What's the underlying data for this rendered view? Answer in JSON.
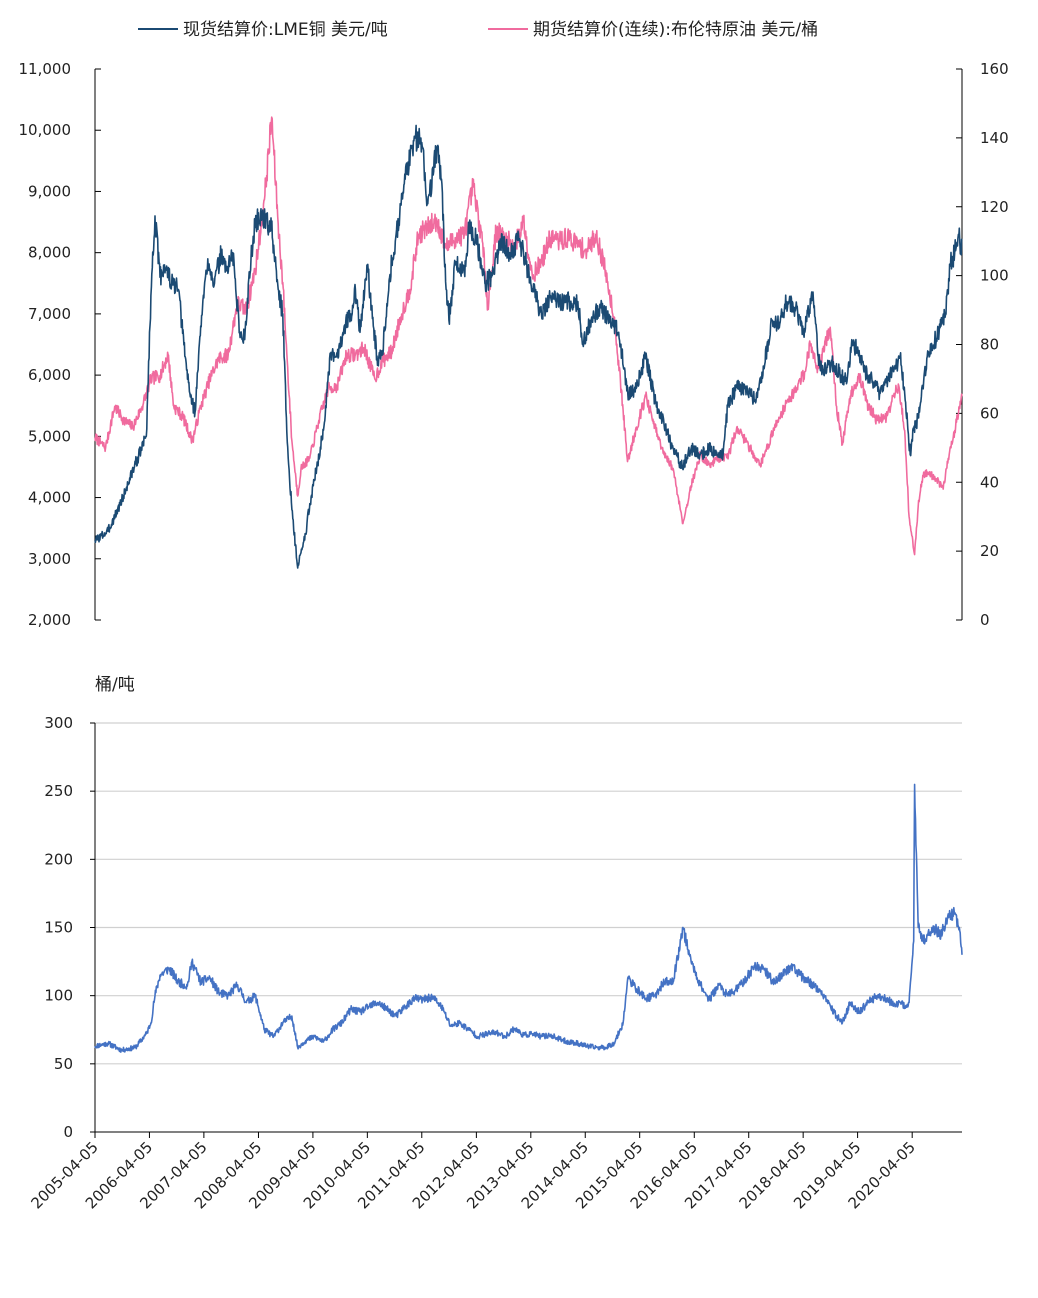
{
  "colors": {
    "copper": "#1B4A73",
    "brent": "#F06B9E",
    "ratio": "#4472C4",
    "axis": "#000000",
    "grid": "#D0D0D0"
  },
  "chart_data": [
    {
      "type": "line",
      "legend_position": "top",
      "legend": [
        "现货结算价:LME铜 美元/吨",
        "期货结算价(连续):布伦特原油 美元/桶"
      ],
      "left_ylim": [
        2000,
        11000
      ],
      "right_ylim": [
        0,
        160
      ],
      "left_ticks": [
        "2,000",
        "3,000",
        "4,000",
        "5,000",
        "6,000",
        "7,000",
        "8,000",
        "9,000",
        "10,000",
        "11,000"
      ],
      "right_ticks": [
        "0",
        "20",
        "40",
        "60",
        "80",
        "100",
        "120",
        "140",
        "160"
      ],
      "grid": false,
      "x_range": [
        "2005-04-05",
        "2021-03-05"
      ],
      "series": [
        {
          "name": "现货结算价:LME铜 美元/吨",
          "axis": "left",
          "x": [
            "2005-04-05",
            "2005-07-01",
            "2005-10-01",
            "2006-01-01",
            "2006-03-15",
            "2006-04-15",
            "2006-05-12",
            "2006-06-15",
            "2006-07-15",
            "2006-09-01",
            "2006-10-15",
            "2006-12-01",
            "2007-01-01",
            "2007-02-05",
            "2007-03-15",
            "2007-05-01",
            "2007-06-15",
            "2007-08-01",
            "2007-09-01",
            "2007-10-15",
            "2007-12-01",
            "2008-01-01",
            "2008-02-15",
            "2008-03-15",
            "2008-05-01",
            "2008-07-01",
            "2008-08-15",
            "2008-09-15",
            "2008-10-15",
            "2008-11-15",
            "2008-12-24",
            "2009-01-15",
            "2009-02-15",
            "2009-03-15",
            "2009-05-01",
            "2009-06-15",
            "2009-08-01",
            "2009-09-15",
            "2009-11-01",
            "2009-12-15",
            "2010-01-15",
            "2010-02-15",
            "2010-04-05",
            "2010-05-15",
            "2010-06-15",
            "2010-07-15",
            "2010-09-01",
            "2010-10-15",
            "2010-12-15",
            "2011-02-14",
            "2011-04-05",
            "2011-05-15",
            "2011-07-15",
            "2011-08-15",
            "2011-09-15",
            "2011-10-04",
            "2011-11-15",
            "2012-01-15",
            "2012-02-15",
            "2012-04-05",
            "2012-06-01",
            "2012-07-15",
            "2012-09-15",
            "2012-11-15",
            "2013-01-15",
            "2013-02-15",
            "2013-04-05",
            "2013-06-15",
            "2013-08-15",
            "2013-10-15",
            "2013-12-15",
            "2014-02-15",
            "2014-03-20",
            "2014-05-15",
            "2014-07-15",
            "2014-09-15",
            "2014-11-15",
            "2015-01-15",
            "2015-03-15",
            "2015-05-15",
            "2015-07-15",
            "2015-09-15",
            "2015-11-15",
            "2016-01-15",
            "2016-03-15",
            "2016-05-15",
            "2016-07-15",
            "2016-09-15",
            "2016-10-15",
            "2016-11-15",
            "2017-01-15",
            "2017-03-15",
            "2017-05-15",
            "2017-07-15",
            "2017-09-05",
            "2017-10-15",
            "2017-12-15",
            "2018-02-15",
            "2018-04-05",
            "2018-06-07",
            "2018-07-15",
            "2018-08-15",
            "2018-10-15",
            "2018-12-15",
            "2019-01-15",
            "2019-02-28",
            "2019-04-15",
            "2019-05-15",
            "2019-07-15",
            "2019-09-03",
            "2019-10-15",
            "2019-12-15",
            "2020-01-15",
            "2020-02-15",
            "2020-03-23",
            "2020-04-15",
            "2020-05-15",
            "2020-06-15",
            "2020-07-15",
            "2020-08-15",
            "2020-09-15",
            "2020-10-15",
            "2020-11-15",
            "2020-12-15",
            "2021-01-15",
            "2021-02-15",
            "2021-02-25",
            "2021-03-05"
          ],
          "y": [
            3300,
            3450,
            3950,
            4550,
            5000,
            7300,
            8600,
            7600,
            7800,
            7500,
            7400,
            6300,
            5700,
            5400,
            6800,
            7900,
            7500,
            8000,
            7700,
            8000,
            6700,
            6600,
            7900,
            8500,
            8600,
            8400,
            7400,
            7000,
            4900,
            3800,
            2850,
            3100,
            3400,
            3900,
            4500,
            5100,
            6300,
            6300,
            6800,
            7000,
            7400,
            6700,
            7800,
            6800,
            6200,
            6400,
            7600,
            8300,
            9200,
            9900,
            9800,
            8800,
            9700,
            9200,
            7400,
            6900,
            7800,
            7700,
            8400,
            8200,
            7500,
            7600,
            8200,
            8000,
            8200,
            8000,
            7500,
            7000,
            7300,
            7200,
            7200,
            7200,
            6500,
            6900,
            7100,
            6900,
            6700,
            5700,
            5800,
            6300,
            5600,
            5200,
            4800,
            4500,
            4800,
            4700,
            4800,
            4700,
            4700,
            5500,
            5800,
            5800,
            5600,
            6100,
            6900,
            6800,
            7200,
            7100,
            6700,
            7300,
            6300,
            6100,
            6200,
            6000,
            5900,
            6500,
            6400,
            6100,
            5900,
            5700,
            5900,
            6100,
            6300,
            5700,
            4700,
            5100,
            5300,
            5800,
            6300,
            6500,
            6600,
            6800,
            7000,
            7800,
            8000,
            8400,
            8000,
            8200
          ]
        },
        {
          "name": "期货结算价(连续):布伦特原油 美元/桶",
          "axis": "right",
          "x": [
            "2005-04-05",
            "2005-06-15",
            "2005-08-15",
            "2005-10-15",
            "2005-12-15",
            "2006-02-15",
            "2006-04-15",
            "2006-06-15",
            "2006-08-08",
            "2006-09-15",
            "2006-11-15",
            "2007-01-18",
            "2007-03-15",
            "2007-05-15",
            "2007-07-15",
            "2007-09-15",
            "2007-11-15",
            "2008-01-15",
            "2008-03-15",
            "2008-05-15",
            "2008-07-03",
            "2008-08-15",
            "2008-09-15",
            "2008-10-15",
            "2008-11-15",
            "2008-12-24",
            "2009-01-15",
            "2009-03-15",
            "2009-05-15",
            "2009-07-15",
            "2009-09-15",
            "2009-11-15",
            "2010-01-15",
            "2010-03-15",
            "2010-05-25",
            "2010-07-15",
            "2010-09-15",
            "2010-11-15",
            "2011-01-15",
            "2011-03-15",
            "2011-05-15",
            "2011-07-15",
            "2011-09-15",
            "2011-11-15",
            "2012-01-15",
            "2012-03-13",
            "2012-05-15",
            "2012-06-21",
            "2012-08-15",
            "2012-10-15",
            "2012-12-15",
            "2013-02-15",
            "2013-04-15",
            "2013-06-15",
            "2013-08-15",
            "2013-10-15",
            "2013-12-15",
            "2014-02-15",
            "2014-04-15",
            "2014-06-15",
            "2014-08-15",
            "2014-10-15",
            "2014-12-15",
            "2015-01-13",
            "2015-03-15",
            "2015-05-15",
            "2015-07-15",
            "2015-09-15",
            "2015-11-15",
            "2016-01-20",
            "2016-03-15",
            "2016-05-15",
            "2016-07-15",
            "2016-09-15",
            "2016-11-15",
            "2017-01-15",
            "2017-03-15",
            "2017-06-21",
            "2017-08-15",
            "2017-10-15",
            "2017-12-15",
            "2018-02-15",
            "2018-04-15",
            "2018-05-22",
            "2018-07-15",
            "2018-10-03",
            "2018-11-15",
            "2018-12-24",
            "2019-02-15",
            "2019-04-15",
            "2019-06-15",
            "2019-08-15",
            "2019-10-15",
            "2019-12-15",
            "2020-01-06",
            "2020-02-15",
            "2020-03-15",
            "2020-04-21",
            "2020-05-15",
            "2020-06-15",
            "2020-07-15",
            "2020-09-15",
            "2020-10-30",
            "2020-12-15",
            "2021-01-15",
            "2021-02-15",
            "2021-03-05"
          ],
          "y": [
            53,
            50,
            62,
            58,
            56,
            62,
            70,
            71,
            77,
            62,
            59,
            52,
            62,
            70,
            76,
            77,
            92,
            90,
            102,
            122,
            146,
            115,
            98,
            75,
            52,
            36,
            44,
            47,
            58,
            67,
            68,
            77,
            77,
            79,
            70,
            75,
            78,
            88,
            96,
            112,
            114,
            116,
            108,
            111,
            112,
            126,
            110,
            91,
            113,
            111,
            108,
            116,
            100,
            104,
            111,
            110,
            111,
            109,
            107,
            112,
            102,
            88,
            61,
            46,
            56,
            65,
            56,
            48,
            44,
            28,
            39,
            48,
            45,
            47,
            47,
            56,
            52,
            45,
            51,
            58,
            63,
            67,
            72,
            80,
            73,
            85,
            62,
            51,
            65,
            71,
            62,
            58,
            59,
            66,
            68,
            55,
            30,
            19,
            33,
            42,
            43,
            41,
            38,
            50,
            55,
            62,
            65
          ]
        }
      ]
    },
    {
      "type": "line",
      "unit_label": "桶/吨",
      "ylim": [
        0,
        300
      ],
      "y_ticks": [
        "0",
        "50",
        "100",
        "150",
        "200",
        "250",
        "300"
      ],
      "grid": true,
      "x_ticks": [
        "2005-04-05",
        "2006-04-05",
        "2007-04-05",
        "2008-04-05",
        "2009-04-05",
        "2010-04-05",
        "2011-04-05",
        "2012-04-05",
        "2013-04-05",
        "2014-04-05",
        "2015-04-05",
        "2016-04-05",
        "2017-04-05",
        "2018-04-05",
        "2019-04-05",
        "2020-04-05"
      ],
      "x_range": [
        "2005-04-05",
        "2021-03-05"
      ],
      "series": [
        {
          "x": [
            "2005-04-05",
            "2005-07-01",
            "2005-10-01",
            "2006-01-01",
            "2006-03-15",
            "2006-04-15",
            "2006-05-12",
            "2006-06-15",
            "2006-08-15",
            "2006-10-15",
            "2006-12-15",
            "2007-01-15",
            "2007-03-15",
            "2007-05-15",
            "2007-07-15",
            "2007-09-15",
            "2007-11-15",
            "2008-01-15",
            "2008-03-15",
            "2008-05-15",
            "2008-07-15",
            "2008-09-15",
            "2008-11-15",
            "2008-12-24",
            "2009-02-15",
            "2009-04-15",
            "2009-06-15",
            "2009-08-15",
            "2009-10-15",
            "2009-12-15",
            "2010-02-15",
            "2010-04-15",
            "2010-06-15",
            "2010-08-15",
            "2010-10-15",
            "2010-12-15",
            "2011-02-15",
            "2011-04-15",
            "2011-06-15",
            "2011-08-15",
            "2011-10-15",
            "2011-12-15",
            "2012-02-15",
            "2012-04-15",
            "2012-06-15",
            "2012-08-15",
            "2012-10-15",
            "2012-12-15",
            "2013-02-15",
            "2013-04-15",
            "2013-06-15",
            "2013-08-15",
            "2013-10-15",
            "2013-12-15",
            "2014-02-15",
            "2014-04-15",
            "2014-06-15",
            "2014-08-15",
            "2014-10-15",
            "2014-12-15",
            "2015-01-15",
            "2015-03-15",
            "2015-05-15",
            "2015-07-15",
            "2015-09-15",
            "2015-11-15",
            "2016-01-20",
            "2016-03-15",
            "2016-05-15",
            "2016-07-15",
            "2016-09-15",
            "2016-11-15",
            "2017-01-15",
            "2017-03-15",
            "2017-05-15",
            "2017-07-15",
            "2017-09-15",
            "2017-11-15",
            "2018-01-15",
            "2018-03-15",
            "2018-05-15",
            "2018-07-15",
            "2018-09-15",
            "2018-11-15",
            "2018-12-24",
            "2019-02-15",
            "2019-04-15",
            "2019-06-15",
            "2019-08-15",
            "2019-10-15",
            "2019-12-15",
            "2020-01-15",
            "2020-02-15",
            "2020-03-15",
            "2020-04-15",
            "2020-04-21",
            "2020-05-15",
            "2020-06-15",
            "2020-08-15",
            "2020-10-15",
            "2020-12-15",
            "2021-01-15",
            "2021-02-15",
            "2021-03-05"
          ],
          "y": [
            63,
            65,
            60,
            62,
            72,
            80,
            100,
            115,
            120,
            110,
            107,
            125,
            110,
            113,
            102,
            100,
            108,
            95,
            100,
            75,
            70,
            80,
            85,
            62,
            67,
            70,
            66,
            75,
            80,
            90,
            88,
            92,
            95,
            90,
            85,
            92,
            98,
            97,
            99,
            92,
            78,
            80,
            75,
            70,
            72,
            73,
            70,
            76,
            71,
            72,
            70,
            71,
            68,
            66,
            65,
            63,
            62,
            62,
            65,
            80,
            113,
            105,
            98,
            100,
            110,
            110,
            150,
            125,
            108,
            97,
            108,
            100,
            105,
            112,
            122,
            120,
            110,
            115,
            122,
            115,
            110,
            105,
            95,
            85,
            80,
            95,
            88,
            95,
            100,
            98,
            92,
            95,
            92,
            95,
            140,
            255,
            150,
            140,
            150,
            145,
            160,
            160,
            150,
            130
          ]
        }
      ]
    }
  ]
}
